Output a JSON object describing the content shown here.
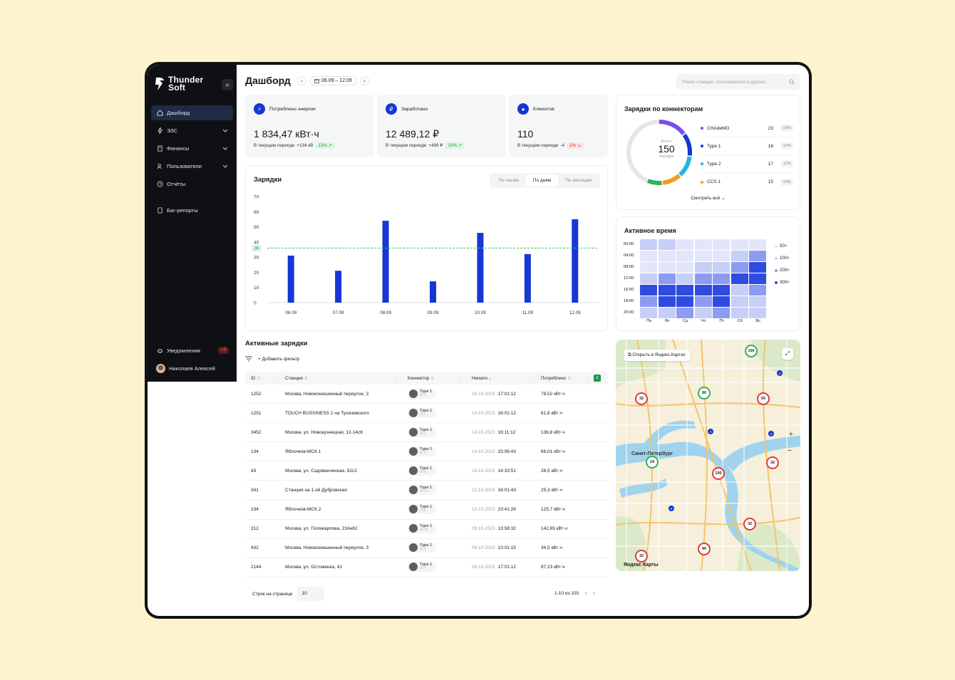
{
  "brand": {
    "line1": "Thunder",
    "line2": "Soft"
  },
  "sidebar": {
    "items": [
      {
        "label": "Дашборд",
        "icon": "home-icon",
        "active": true
      },
      {
        "label": "ЭЗС",
        "icon": "bolt-icon"
      },
      {
        "label": "Финансы",
        "icon": "document-icon"
      },
      {
        "label": "Пользователи",
        "icon": "users-icon"
      },
      {
        "label": "Отчёты",
        "icon": "clock-icon"
      },
      {
        "label": "Баг-репорты",
        "icon": "bug-report-icon"
      }
    ],
    "notifications": {
      "label": "Уведомления",
      "badge": "+3"
    },
    "user": {
      "name": "Николаев Алексей"
    }
  },
  "header": {
    "title": "Дашборд",
    "date_range": "06.09 – 12.09",
    "search_placeholder": "Поиск станции, пользователя и другое..."
  },
  "stats": [
    {
      "title": "Потреблено энергии",
      "icon": "bolt-icon",
      "value": "1 834,47 кВт·ч",
      "period": "В текущем периоде",
      "delta": "+134 кВ",
      "pct": "12%",
      "trend": "up"
    },
    {
      "title": "Заработано",
      "icon": "ruble-icon",
      "value": "12 489,12 ₽",
      "period": "В текущем периоде",
      "delta": "+489 ₽",
      "pct": "10%",
      "trend": "up"
    },
    {
      "title": "Клиентов",
      "icon": "user-icon",
      "value": "110",
      "period": "В текущем периоде",
      "delta": "-4",
      "pct": "2%",
      "trend": "down"
    }
  ],
  "charging_chart": {
    "title": "Зарядки",
    "tabs": [
      "По часам",
      "По дням",
      "По месяцам"
    ],
    "active_tab": "По дням"
  },
  "chart_data": {
    "type": "bar",
    "title": "Зарядки",
    "categories": [
      "06.09",
      "07.09",
      "08.09",
      "09.09",
      "10.09",
      "11.09",
      "12.09"
    ],
    "values": [
      31,
      21,
      54,
      14,
      46,
      32,
      55
    ],
    "yticks": [
      0,
      10,
      20,
      30,
      40,
      50,
      60,
      70
    ],
    "ylim": [
      0,
      70
    ],
    "average_line": 36,
    "average_label": "36",
    "color": "#1636d6",
    "grid": false
  },
  "connectors": {
    "title": "Зарядки по коннекторам",
    "total_label_top": "Всего",
    "total": "150",
    "total_label_bottom": "Зарядки",
    "items": [
      {
        "name": "CHAdeMO",
        "count": "23",
        "pct": "15%",
        "color": "#7b4df0"
      },
      {
        "name": "Type 1",
        "count": "18",
        "pct": "12%",
        "color": "#1636d6"
      },
      {
        "name": "Type 2",
        "count": "17",
        "pct": "11%",
        "color": "#1cb5e0"
      },
      {
        "name": "CCS 1",
        "count": "15",
        "pct": "10%",
        "color": "#f59a1b"
      }
    ],
    "see_all": "Смотреть всё"
  },
  "active_time": {
    "title": "Активное время",
    "rows": [
      "00:00",
      "04:00",
      "08:00",
      "12:00",
      "16:00",
      "18:00",
      "20:00"
    ],
    "cols": [
      "Пн",
      "Вт",
      "Ср",
      "Чт",
      "Пт",
      "Сб",
      "Вс"
    ],
    "levels": [
      [
        2,
        2,
        1,
        1,
        1,
        1,
        1
      ],
      [
        1,
        1,
        1,
        1,
        1,
        2,
        3
      ],
      [
        1,
        1,
        1,
        2,
        2,
        3,
        4
      ],
      [
        2,
        3,
        2,
        3,
        3,
        4,
        4
      ],
      [
        4,
        4,
        4,
        4,
        4,
        2,
        3
      ],
      [
        3,
        4,
        4,
        3,
        4,
        2,
        2
      ],
      [
        2,
        2,
        3,
        2,
        3,
        2,
        2
      ]
    ],
    "legend": [
      "50>",
      "100>",
      "200>",
      "300>"
    ],
    "palette": [
      "#ffffff",
      "#e3e6fb",
      "#c8cff7",
      "#8d9cf0",
      "#2f4be0"
    ]
  },
  "active_charges": {
    "title": "Активные зарядки",
    "add_filter": "Добавить фильтр",
    "columns": [
      "ID",
      "Станция",
      "Коннектор",
      "Начало",
      "Потреблено"
    ],
    "rows": [
      {
        "id": "1252",
        "station": "Москва, Новоконюшенный переулок, 3",
        "conn": "Type 1",
        "conn_id": "ID 1",
        "date": "16.10.2023",
        "time": "17:01:12",
        "cons": "78,52 кВт·ч"
      },
      {
        "id": "1251",
        "station": "TOUCH BUSSINESS 2 на Тухачевского",
        "conn": "Type 1",
        "conn_id": "ID 2",
        "date": "14.10.2023",
        "time": "16:01:12",
        "cons": "61,8 кВт·ч"
      },
      {
        "id": "3452",
        "station": "Москва, ул. Новокузнецкая, 12-14с8",
        "conn": "Type 1",
        "conn_id": "ID 1",
        "date": "14.10.2023",
        "time": "16:11:12",
        "cons": "136,8 кВт·ч"
      },
      {
        "id": "134",
        "station": "Яблочков-МСК.1",
        "conn": "Type 1",
        "conn_id": "ID 3",
        "date": "14.10.2023",
        "time": "15:06:43",
        "cons": "66,01 кВт·ч"
      },
      {
        "id": "43",
        "station": "Москва, ул. Садовническая, 82с2",
        "conn": "Type 1",
        "conn_id": "ID 6",
        "date": "14.10.2023",
        "time": "14:33:51",
        "cons": "26,5 кВт·ч"
      },
      {
        "id": "341",
        "station": "Станция на 1-ой Дубровская",
        "conn": "Type 1",
        "conn_id": "ID 12",
        "date": "12.10.2023",
        "time": "16:01:43",
        "cons": "25,3 кВт·ч"
      },
      {
        "id": "234",
        "station": "Яблочков-МСК.2",
        "conn": "Type 1",
        "conn_id": "ID 8",
        "date": "10.10.2023",
        "time": "23:41:26",
        "cons": "125,7 кВт·ч"
      },
      {
        "id": "312",
        "station": "Москва, ул. Поликарпова, 23Ак62",
        "conn": "Type 1",
        "conn_id": "ID 10",
        "date": "09.10.2023",
        "time": "13:58:32",
        "cons": "142,65 кВт·ч"
      },
      {
        "id": "432",
        "station": "Москва, Новоконюшенный переулок, 3",
        "conn": "Type 1",
        "conn_id": "ID 4",
        "date": "09.10.2023",
        "time": "13:01:15",
        "cons": "34,5 кВт·ч"
      },
      {
        "id": "2144",
        "station": "Москва, ул. Остоженка, 41",
        "conn": "Type 1",
        "conn_id": "ID 7",
        "date": "08.10.2023",
        "time": "17:01:12",
        "cons": "87,23 кВт·ч"
      }
    ],
    "rows_per_page_label": "Строк на странице",
    "rows_per_page": "10",
    "range": "1-10 из 100"
  },
  "map": {
    "open_label": "Открыть в Яндекс.Картах",
    "city": "Санкт-Петербург",
    "provider": "Яндекс Карты",
    "markers": [
      {
        "v": "100",
        "color": "#2fb255"
      },
      {
        "v": "32",
        "color": "#e23b3b"
      },
      {
        "v": "90",
        "color": "#2fb255"
      },
      {
        "v": "50",
        "color": "#e23b3b"
      },
      {
        "v": "24",
        "color": "#2fb255"
      },
      {
        "v": "100",
        "color": "#e23b3b"
      },
      {
        "v": "32",
        "color": "#e23b3b"
      },
      {
        "v": "32",
        "color": "#e23b3b"
      },
      {
        "v": "90",
        "color": "#e23b3b"
      },
      {
        "v": "32",
        "color": "#e23b3b"
      }
    ],
    "pins": [
      "4",
      "4",
      "4",
      "4"
    ]
  }
}
